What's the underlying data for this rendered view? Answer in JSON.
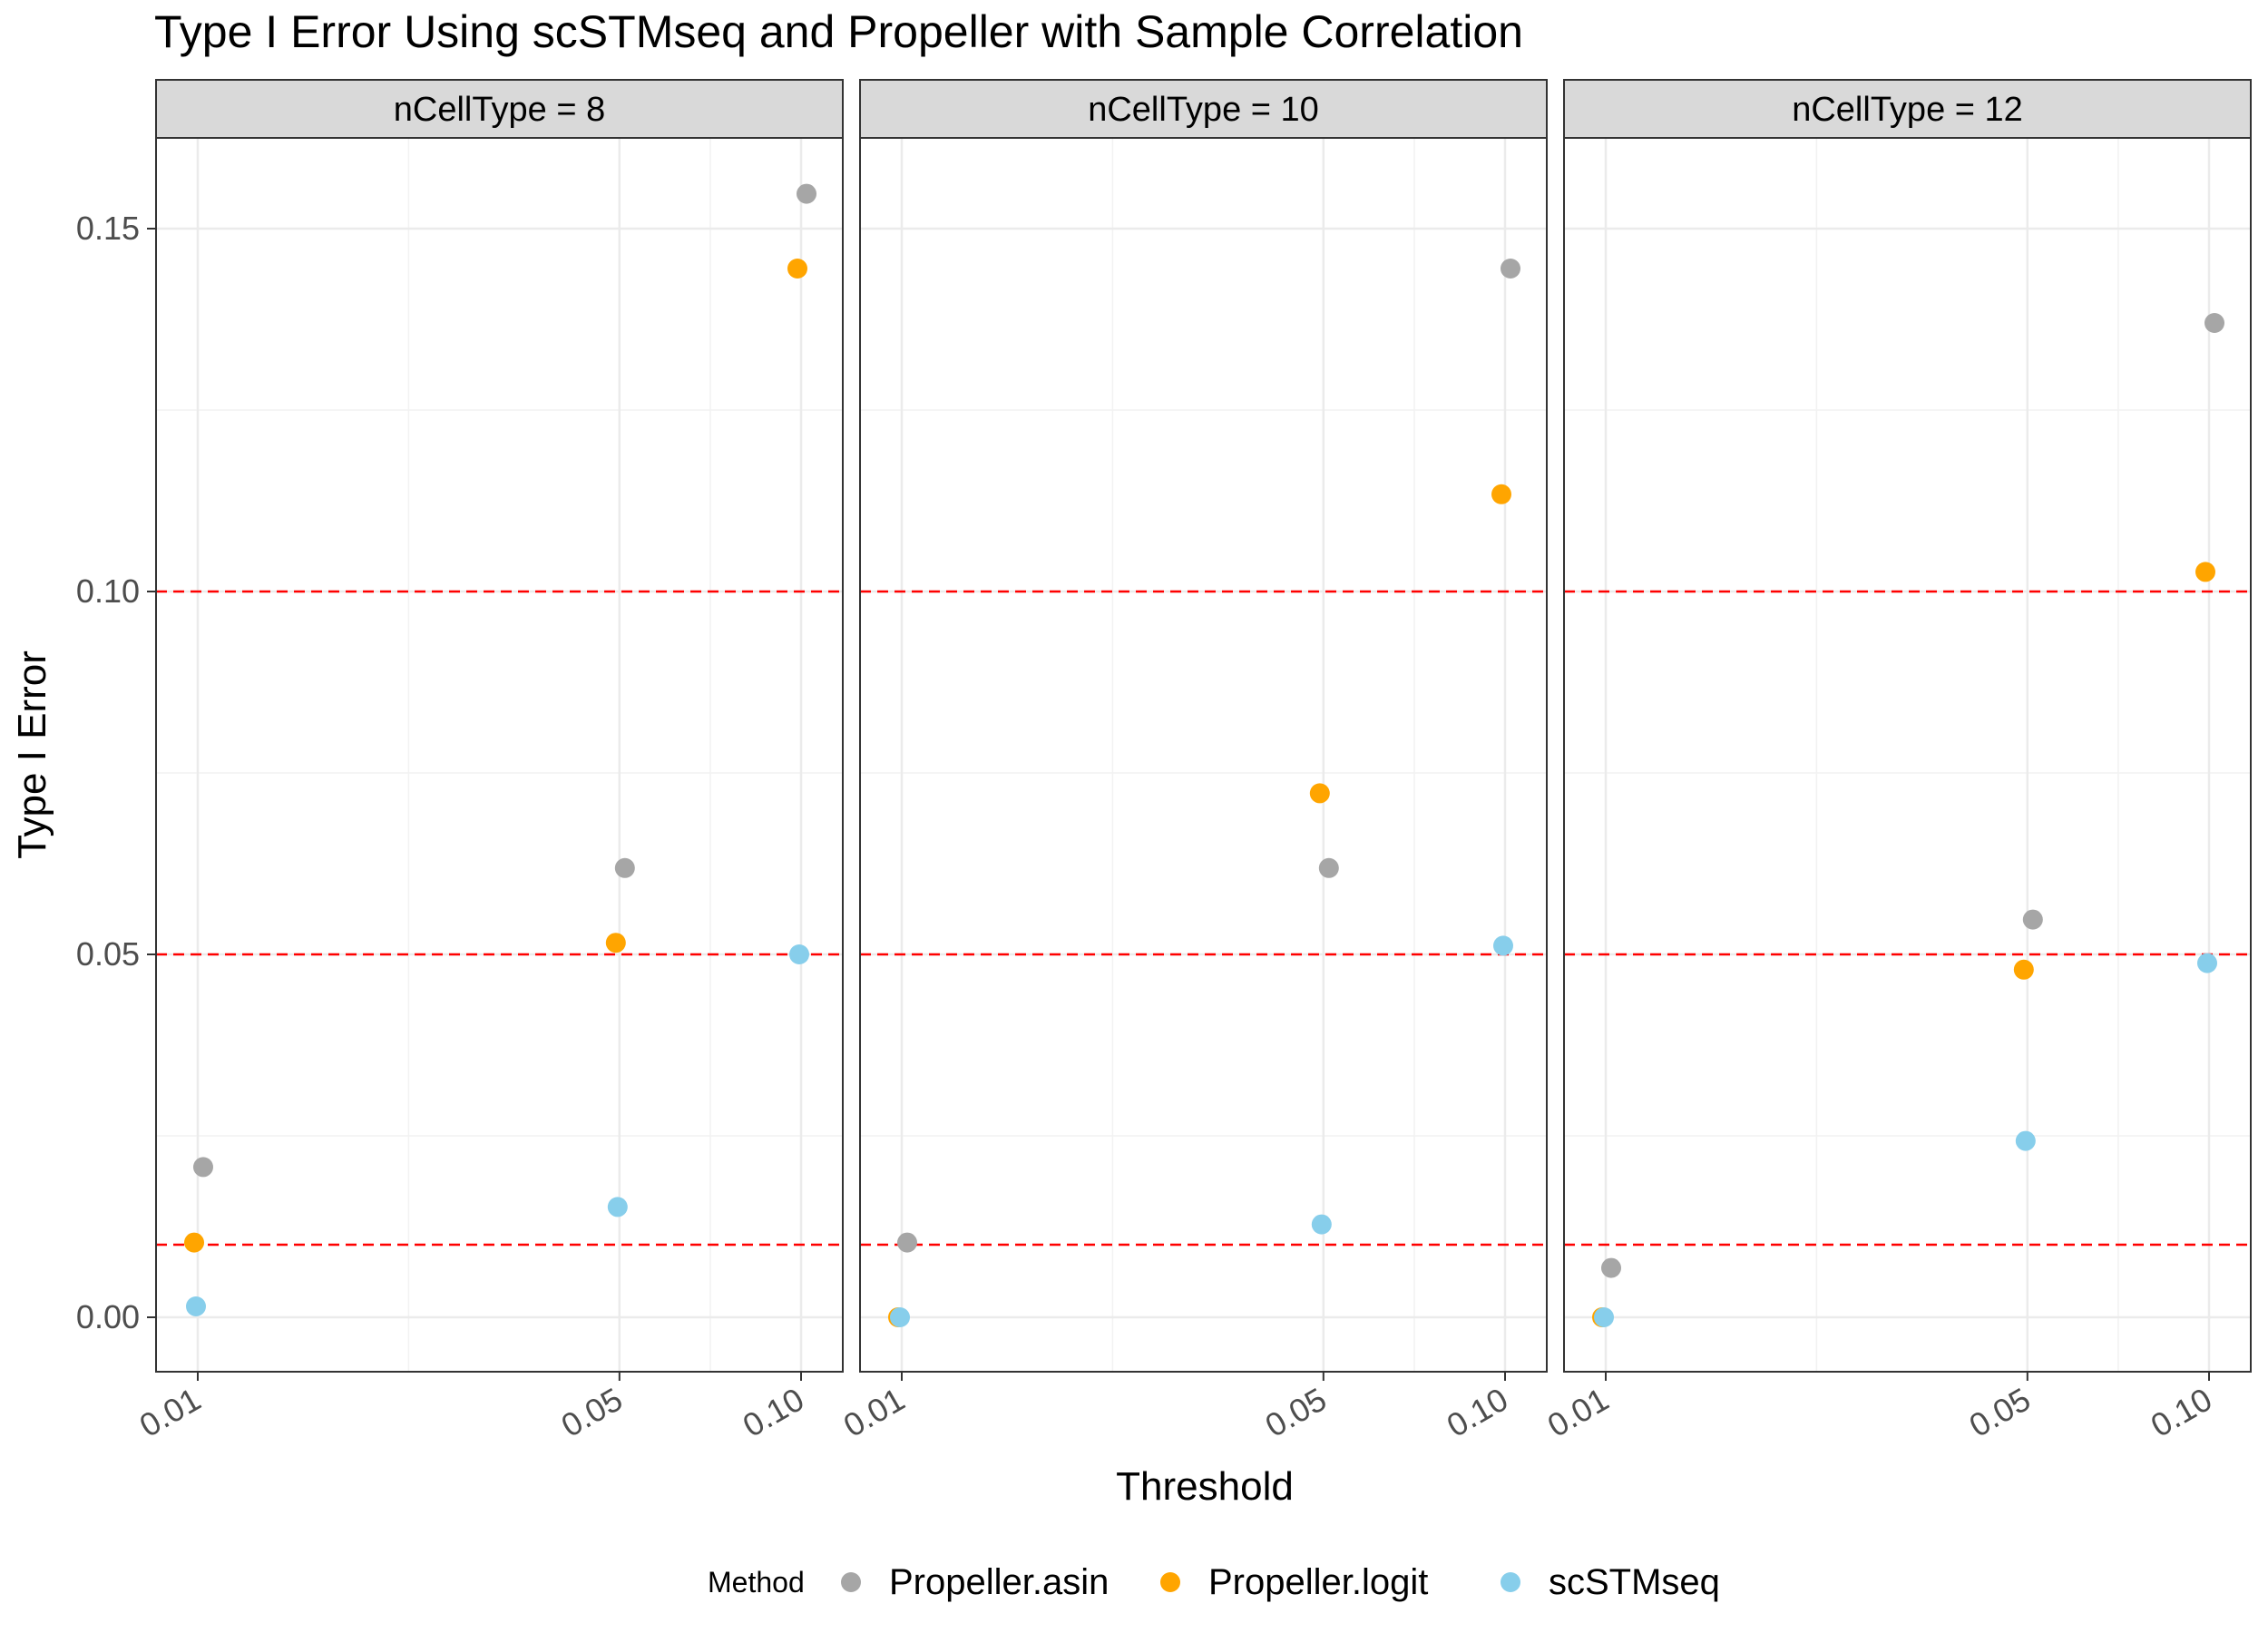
{
  "chart_data": {
    "type": "scatter",
    "title": "Type I Error Using scSTMseq and Propeller with Sample Correlation",
    "xlabel": "Threshold",
    "ylabel": "Type I Error",
    "x_ticks": [
      "0.01",
      "0.05",
      "0.10"
    ],
    "y_ticks": [
      "0.00",
      "0.05",
      "0.10",
      "0.15"
    ],
    "ylim": [
      -0.0075,
      0.1625
    ],
    "reference_lines": [
      0.01,
      0.05,
      0.1
    ],
    "reference_line_color": "#ff0000",
    "grid": true,
    "legend": {
      "title": "Method",
      "position": "bottom",
      "entries": [
        {
          "name": "Propeller.asin",
          "color": "#a6a6a6"
        },
        {
          "name": "Propeller.logit",
          "color": "#ffa500"
        },
        {
          "name": "scSTMseq",
          "color": "#87ceeb"
        }
      ]
    },
    "panels": [
      {
        "strip": "nCellType = 8",
        "series": [
          {
            "name": "Propeller.asin",
            "points": [
              {
                "x": 0.01,
                "y": 0.0207
              },
              {
                "x": 0.05,
                "y": 0.0619
              },
              {
                "x": 0.1,
                "y": 0.1548
              }
            ]
          },
          {
            "name": "Propeller.logit",
            "points": [
              {
                "x": 0.01,
                "y": 0.0103
              },
              {
                "x": 0.05,
                "y": 0.0516
              },
              {
                "x": 0.1,
                "y": 0.1445
              }
            ]
          },
          {
            "name": "scSTMseq",
            "points": [
              {
                "x": 0.01,
                "y": 0.0015
              },
              {
                "x": 0.05,
                "y": 0.0152
              },
              {
                "x": 0.1,
                "y": 0.05
              }
            ]
          }
        ]
      },
      {
        "strip": "nCellType = 10",
        "series": [
          {
            "name": "Propeller.asin",
            "points": [
              {
                "x": 0.01,
                "y": 0.0103
              },
              {
                "x": 0.05,
                "y": 0.0619
              },
              {
                "x": 0.1,
                "y": 0.1445
              }
            ]
          },
          {
            "name": "Propeller.logit",
            "points": [
              {
                "x": 0.01,
                "y": 0.0
              },
              {
                "x": 0.05,
                "y": 0.0722
              },
              {
                "x": 0.1,
                "y": 0.1134
              }
            ]
          },
          {
            "name": "scSTMseq",
            "points": [
              {
                "x": 0.01,
                "y": 0.0
              },
              {
                "x": 0.05,
                "y": 0.0128
              },
              {
                "x": 0.1,
                "y": 0.0512
              }
            ]
          }
        ]
      },
      {
        "strip": "nCellType = 12",
        "series": [
          {
            "name": "Propeller.asin",
            "points": [
              {
                "x": 0.01,
                "y": 0.0068
              },
              {
                "x": 0.05,
                "y": 0.0548
              },
              {
                "x": 0.1,
                "y": 0.137
              }
            ]
          },
          {
            "name": "Propeller.logit",
            "points": [
              {
                "x": 0.01,
                "y": 0.0
              },
              {
                "x": 0.05,
                "y": 0.0479
              },
              {
                "x": 0.1,
                "y": 0.1027
              }
            ]
          },
          {
            "name": "scSTMseq",
            "points": [
              {
                "x": 0.01,
                "y": 0.0
              },
              {
                "x": 0.05,
                "y": 0.0243
              },
              {
                "x": 0.1,
                "y": 0.0488
              }
            ]
          }
        ]
      }
    ]
  }
}
